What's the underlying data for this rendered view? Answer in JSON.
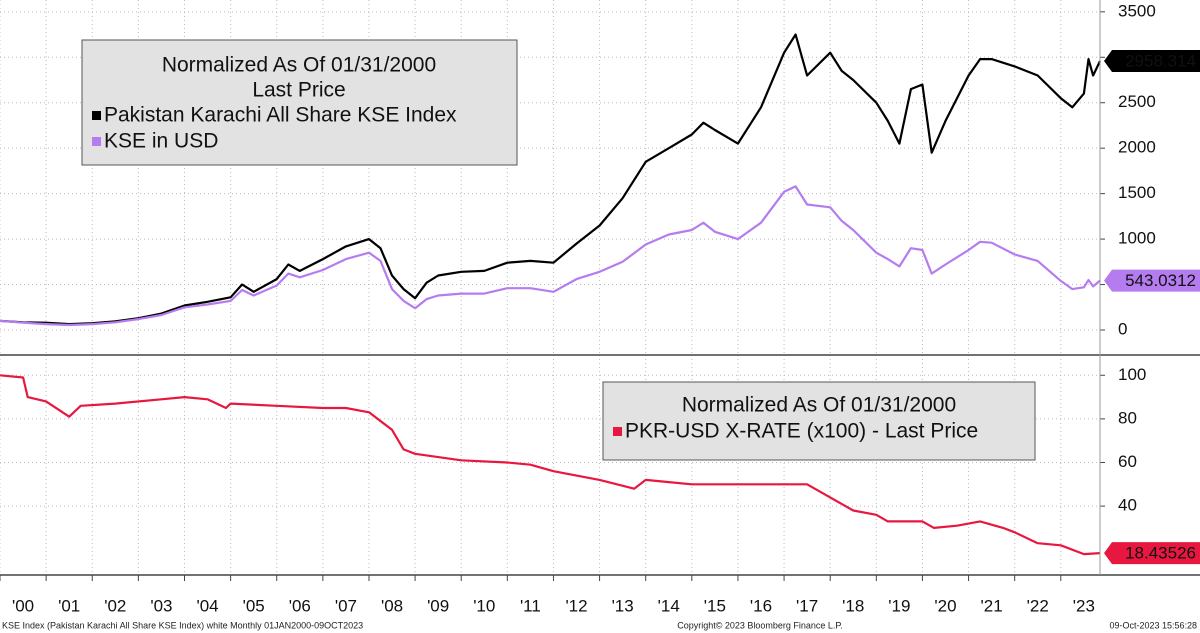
{
  "chart_data": [
    {
      "type": "line",
      "legend_title": "Normalized As Of 01/31/2000",
      "legend_subtitle": "Last Price",
      "x": [
        2000.0,
        2000.5,
        2001.0,
        2001.5,
        2002.0,
        2002.5,
        2003.0,
        2003.5,
        2004.0,
        2004.5,
        2005.0,
        2005.25,
        2005.5,
        2006.0,
        2006.25,
        2006.5,
        2007.0,
        2007.5,
        2008.0,
        2008.25,
        2008.5,
        2008.75,
        2009.0,
        2009.25,
        2009.5,
        2010.0,
        2010.5,
        2011.0,
        2011.5,
        2012.0,
        2012.5,
        2013.0,
        2013.5,
        2014.0,
        2014.5,
        2015.0,
        2015.25,
        2015.5,
        2016.0,
        2016.5,
        2017.0,
        2017.25,
        2017.5,
        2018.0,
        2018.25,
        2018.5,
        2019.0,
        2019.25,
        2019.5,
        2019.75,
        2020.0,
        2020.2,
        2020.5,
        2021.0,
        2021.25,
        2021.5,
        2022.0,
        2022.5,
        2023.0,
        2023.25,
        2023.5,
        2023.6,
        2023.7,
        2023.85
      ],
      "series": [
        {
          "name": "Pakistan Karachi All Share KSE Index",
          "color": "#000000",
          "values": [
            100,
            85,
            80,
            65,
            75,
            95,
            130,
            180,
            270,
            310,
            360,
            500,
            420,
            560,
            720,
            650,
            780,
            920,
            1000,
            900,
            600,
            450,
            350,
            520,
            600,
            640,
            650,
            740,
            760,
            740,
            950,
            1150,
            1450,
            1850,
            2000,
            2150,
            2280,
            2200,
            2050,
            2450,
            3050,
            3250,
            2800,
            3050,
            2850,
            2750,
            2500,
            2300,
            2050,
            2650,
            2700,
            1950,
            2300,
            2800,
            2980,
            2980,
            2900,
            2800,
            2550,
            2450,
            2600,
            2980,
            2800,
            2958.314
          ]
        },
        {
          "name": "KSE in USD",
          "color": "#b57cf0",
          "values": [
            100,
            80,
            65,
            55,
            65,
            85,
            120,
            165,
            250,
            280,
            320,
            440,
            380,
            490,
            620,
            580,
            660,
            780,
            850,
            760,
            450,
            320,
            240,
            340,
            380,
            400,
            400,
            460,
            460,
            420,
            560,
            640,
            750,
            940,
            1050,
            1100,
            1180,
            1080,
            1000,
            1180,
            1520,
            1580,
            1380,
            1350,
            1200,
            1100,
            850,
            780,
            700,
            900,
            880,
            620,
            720,
            880,
            970,
            960,
            830,
            760,
            540,
            450,
            470,
            550,
            480,
            543.0312
          ]
        }
      ],
      "xlim": [
        2000,
        2023.85
      ],
      "ylim": [
        -275,
        3630
      ],
      "yticks": [
        0,
        500,
        1000,
        1500,
        2000,
        2500,
        3000,
        3500
      ],
      "grid": true
    },
    {
      "type": "line",
      "legend_title": "Normalized As Of 01/31/2000",
      "x": [
        2000.0,
        2000.5,
        2000.6,
        2001.0,
        2001.5,
        2001.75,
        2002.5,
        2003.5,
        2004.0,
        2004.5,
        2004.9,
        2005.0,
        2006.0,
        2007.0,
        2007.5,
        2008.0,
        2008.5,
        2008.75,
        2009.0,
        2010.0,
        2011.0,
        2011.5,
        2012.0,
        2013.0,
        2013.75,
        2014.0,
        2014.5,
        2015.0,
        2016.0,
        2017.0,
        2017.5,
        2018.0,
        2018.5,
        2019.0,
        2019.25,
        2020.0,
        2020.25,
        2020.75,
        2021.25,
        2021.75,
        2022.0,
        2022.5,
        2023.0,
        2023.5,
        2023.85
      ],
      "series": [
        {
          "name": "PKR-USD X-RATE (x100) - Last Price",
          "color": "#e8173f",
          "values": [
            100,
            99,
            90,
            88,
            81,
            86,
            87,
            89,
            90,
            89,
            85,
            87,
            86,
            85,
            85,
            83,
            75,
            66,
            64,
            61,
            60,
            59,
            56,
            52,
            48,
            52,
            51,
            50,
            50,
            50,
            50,
            44,
            38,
            36,
            33,
            33,
            30,
            31,
            33,
            30,
            28,
            23,
            22,
            18,
            18.43526
          ]
        }
      ],
      "xlim": [
        2000,
        2023.85
      ],
      "ylim": [
        8.4,
        109.3
      ],
      "yticks": [
        40,
        60,
        80,
        100
      ],
      "grid": true,
      "xticks": [
        {
          "value": 2000,
          "label": "'00"
        },
        {
          "value": 2001,
          "label": "'01"
        },
        {
          "value": 2002,
          "label": "'02"
        },
        {
          "value": 2003,
          "label": "'03"
        },
        {
          "value": 2004,
          "label": "'04"
        },
        {
          "value": 2005,
          "label": "'05"
        },
        {
          "value": 2006,
          "label": "'06"
        },
        {
          "value": 2007,
          "label": "'07"
        },
        {
          "value": 2008,
          "label": "'08"
        },
        {
          "value": 2009,
          "label": "'09"
        },
        {
          "value": 2010,
          "label": "'10"
        },
        {
          "value": 2011,
          "label": "'11"
        },
        {
          "value": 2012,
          "label": "'12"
        },
        {
          "value": 2013,
          "label": "'13"
        },
        {
          "value": 2014,
          "label": "'14"
        },
        {
          "value": 2015,
          "label": "'15"
        },
        {
          "value": 2016,
          "label": "'16"
        },
        {
          "value": 2017,
          "label": "'17"
        },
        {
          "value": 2018,
          "label": "'18"
        },
        {
          "value": 2019,
          "label": "'19"
        },
        {
          "value": 2020,
          "label": "'20"
        },
        {
          "value": 2021,
          "label": "'21"
        },
        {
          "value": 2022,
          "label": "'22"
        },
        {
          "value": 2023,
          "label": "'23"
        }
      ]
    }
  ],
  "footer": {
    "left": "KSE Index (Pakistan Karachi All Share KSE Index) white  Monthly 01JAN2000-09OCT2023",
    "center": "Copyright© 2023 Bloomberg Finance L.P.",
    "right": "09-Oct-2023 15:56:28"
  }
}
